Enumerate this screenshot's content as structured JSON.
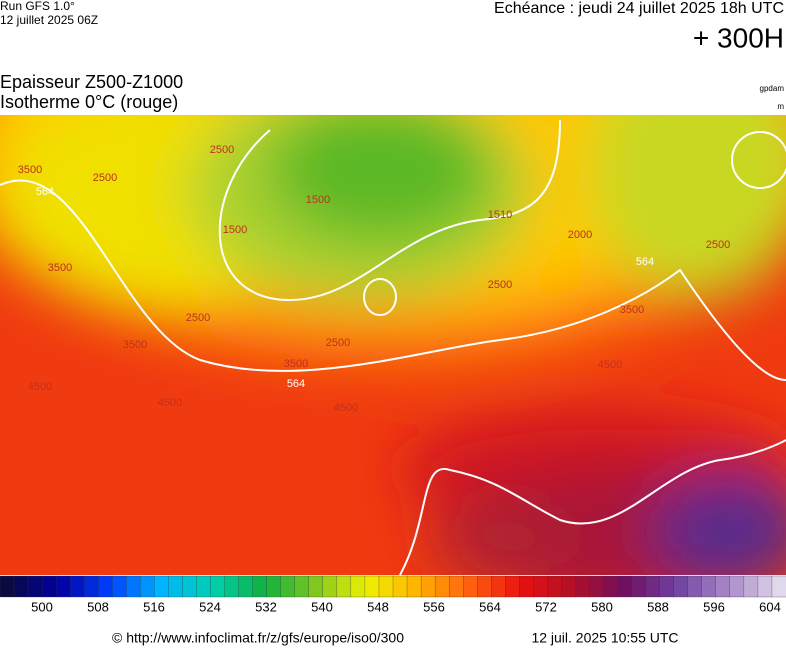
{
  "header": {
    "run": "Run GFS 1.0°",
    "run_date": "12 juillet 2025 06Z",
    "valid": "Echéance : jeudi 24 juillet 2025 18h UTC",
    "lead": "+ 300H",
    "title_line1": "Epaisseur Z500-Z1000",
    "title_line2": "Isotherme 0°C (rouge)",
    "unit1": "gpdam",
    "unit2": "m"
  },
  "map": {
    "contour_labels": [
      "3500",
      "564",
      "2500",
      "3500",
      "2500",
      "1500",
      "1500",
      "1510",
      "2000",
      "2500",
      "2500",
      "2500",
      "2500",
      "3500",
      "564",
      "3500",
      "4500",
      "4500",
      "4500",
      "4500",
      "3500",
      "564"
    ]
  },
  "colorbar": {
    "ticks": [
      500,
      508,
      516,
      524,
      532,
      540,
      548,
      556,
      564,
      572,
      580,
      588,
      596,
      604
    ]
  },
  "footer": {
    "source": "© http://www.infoclimat.fr/z/gfs/europe/iso0/300",
    "generated": "12 juil. 2025 10:55 UTC"
  }
}
